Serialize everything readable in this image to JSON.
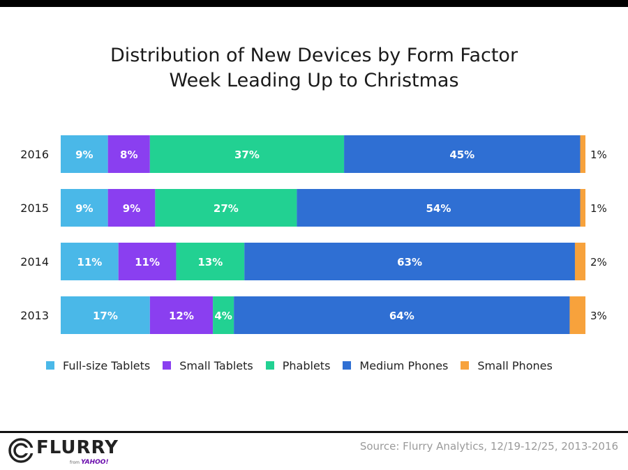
{
  "title_line1": "Distribution of New Devices by Form Factor",
  "title_line2": "Week Leading Up to Christmas",
  "source": "Source: Flurry Analytics, 12/19-12/25, 2013-2016",
  "logo": {
    "word": "FLURRY",
    "from": "from",
    "yahoo": "YAHOO!"
  },
  "colors": {
    "full_size_tablets": "#4ab8e8",
    "small_tablets": "#8a3ff0",
    "phablets": "#22d192",
    "medium_phones": "#2f6fd3",
    "small_phones": "#f7a23c"
  },
  "chart_data": {
    "type": "bar",
    "orientation": "horizontal",
    "stacked": true,
    "categories": [
      "2016",
      "2015",
      "2014",
      "2013"
    ],
    "series": [
      {
        "name": "Full-size Tablets",
        "values": [
          9,
          9,
          11,
          17
        ],
        "labels": [
          "9%",
          "9%",
          "11%",
          "17%"
        ]
      },
      {
        "name": "Small Tablets",
        "values": [
          8,
          9,
          11,
          12
        ],
        "labels": [
          "8%",
          "9%",
          "11%",
          "12%"
        ]
      },
      {
        "name": "Phablets",
        "values": [
          37,
          27,
          13,
          4
        ],
        "labels": [
          "37%",
          "27%",
          "13%",
          "4%"
        ]
      },
      {
        "name": "Medium Phones",
        "values": [
          45,
          54,
          63,
          64
        ],
        "labels": [
          "45%",
          "54%",
          "63%",
          "64%"
        ]
      },
      {
        "name": "Small Phones",
        "values": [
          1,
          1,
          2,
          3
        ],
        "labels": [
          "1%",
          "1%",
          "2%",
          "3%"
        ]
      }
    ],
    "legend_position": "bottom",
    "grid": false
  }
}
